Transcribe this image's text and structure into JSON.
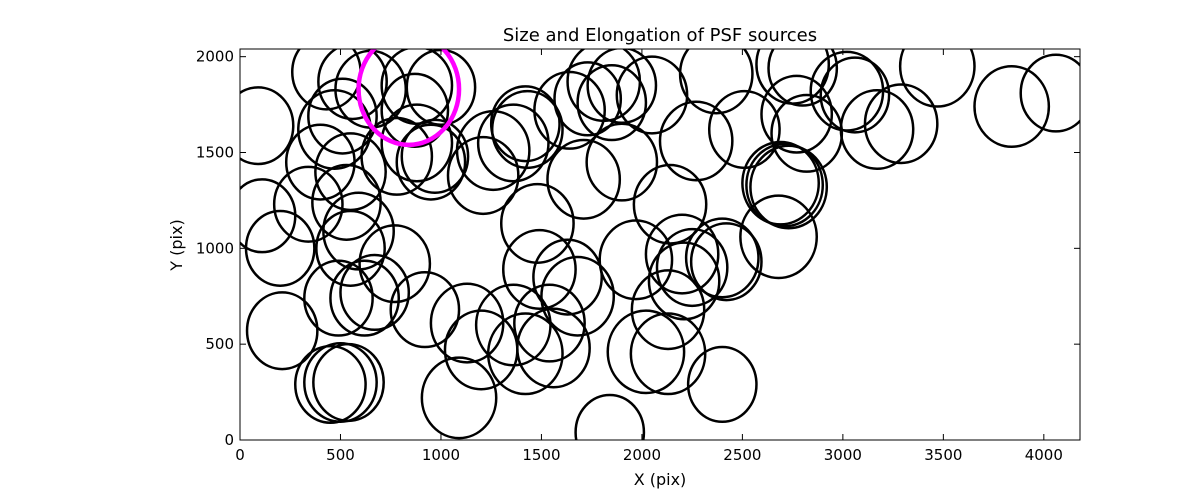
{
  "chart_data": {
    "type": "scatter",
    "title": "Size and Elongation of PSF sources",
    "xlabel": "X (pix)",
    "ylabel": "Y (pix)",
    "xlim": [
      0,
      4180
    ],
    "ylim": [
      0,
      2040
    ],
    "xticks": [
      0,
      500,
      1000,
      1500,
      2000,
      2500,
      3000,
      3500,
      4000
    ],
    "yticks": [
      0,
      500,
      1000,
      1500,
      2000
    ],
    "grid": false,
    "marker": "ellipse-outline",
    "default_color": "#000000",
    "highlight_color": "#ff00ff",
    "sources": [
      [
        90,
        1640,
        175,
        200
      ],
      [
        430,
        1920,
        170,
        195
      ],
      [
        560,
        1870,
        170,
        195
      ],
      [
        510,
        1690,
        170,
        195
      ],
      [
        470,
        1620,
        180,
        205
      ],
      [
        650,
        1830,
        175,
        200
      ],
      [
        880,
        1850,
        175,
        200
      ],
      [
        1000,
        1840,
        170,
        195
      ],
      [
        870,
        1720,
        165,
        190
      ],
      [
        400,
        1450,
        170,
        195
      ],
      [
        550,
        1400,
        175,
        200
      ],
      [
        780,
        1480,
        175,
        200
      ],
      [
        880,
        1550,
        175,
        200
      ],
      [
        950,
        1450,
        170,
        195
      ],
      [
        970,
        1480,
        165,
        190
      ],
      [
        1260,
        1510,
        180,
        205
      ],
      [
        1210,
        1380,
        175,
        200
      ],
      [
        1430,
        1620,
        175,
        200
      ],
      [
        1420,
        1650,
        170,
        195
      ],
      [
        1360,
        1550,
        175,
        200
      ],
      [
        1640,
        1720,
        175,
        200
      ],
      [
        1810,
        1870,
        180,
        205
      ],
      [
        1730,
        1780,
        165,
        190
      ],
      [
        1850,
        1760,
        170,
        195
      ],
      [
        1900,
        1850,
        170,
        195
      ],
      [
        2050,
        1800,
        175,
        200
      ],
      [
        2370,
        1910,
        180,
        205
      ],
      [
        2510,
        1620,
        175,
        200
      ],
      [
        2270,
        1560,
        180,
        205
      ],
      [
        2750,
        1960,
        180,
        205
      ],
      [
        2800,
        1940,
        170,
        195
      ],
      [
        2770,
        1700,
        175,
        200
      ],
      [
        2820,
        1600,
        175,
        200
      ],
      [
        3020,
        1820,
        180,
        205
      ],
      [
        3060,
        1800,
        170,
        195
      ],
      [
        3170,
        1620,
        180,
        205
      ],
      [
        3290,
        1650,
        180,
        205
      ],
      [
        3470,
        1950,
        185,
        210
      ],
      [
        3840,
        1740,
        185,
        210
      ],
      [
        4060,
        1810,
        175,
        200
      ],
      [
        1710,
        1360,
        180,
        205
      ],
      [
        1900,
        1450,
        175,
        200
      ],
      [
        2140,
        1230,
        180,
        205
      ],
      [
        2690,
        1340,
        190,
        215
      ],
      [
        2710,
        1330,
        190,
        215
      ],
      [
        2730,
        1320,
        190,
        215
      ],
      [
        2680,
        1060,
        190,
        215
      ],
      [
        2200,
        970,
        180,
        205
      ],
      [
        2400,
        950,
        180,
        205
      ],
      [
        2420,
        930,
        175,
        200
      ],
      [
        2250,
        900,
        175,
        200
      ],
      [
        2210,
        830,
        175,
        200
      ],
      [
        2130,
        680,
        180,
        205
      ],
      [
        2130,
        450,
        185,
        210
      ],
      [
        2020,
        460,
        190,
        215
      ],
      [
        2400,
        290,
        170,
        195
      ],
      [
        110,
        1170,
        165,
        190
      ],
      [
        340,
        1230,
        170,
        195
      ],
      [
        530,
        1240,
        170,
        195
      ],
      [
        590,
        1090,
        175,
        200
      ],
      [
        200,
        1000,
        170,
        195
      ],
      [
        550,
        1000,
        170,
        195
      ],
      [
        770,
        920,
        175,
        200
      ],
      [
        620,
        740,
        170,
        195
      ],
      [
        670,
        770,
        170,
        195
      ],
      [
        490,
        740,
        170,
        195
      ],
      [
        920,
        680,
        170,
        195
      ],
      [
        210,
        570,
        175,
        200
      ],
      [
        1130,
        610,
        180,
        205
      ],
      [
        1360,
        600,
        185,
        210
      ],
      [
        1540,
        610,
        175,
        200
      ],
      [
        1630,
        850,
        170,
        195
      ],
      [
        1680,
        750,
        180,
        205
      ],
      [
        1490,
        890,
        180,
        205
      ],
      [
        1970,
        940,
        180,
        205
      ],
      [
        1480,
        1130,
        180,
        205
      ],
      [
        450,
        290,
        175,
        200
      ],
      [
        500,
        300,
        180,
        205
      ],
      [
        540,
        300,
        175,
        200
      ],
      [
        1090,
        220,
        185,
        210
      ],
      [
        1200,
        470,
        180,
        205
      ],
      [
        1420,
        450,
        185,
        210
      ],
      [
        1560,
        480,
        180,
        205
      ],
      [
        1840,
        40,
        170,
        195
      ]
    ],
    "highlighted_sources": [
      [
        840,
        1830,
        250,
        290
      ]
    ]
  }
}
